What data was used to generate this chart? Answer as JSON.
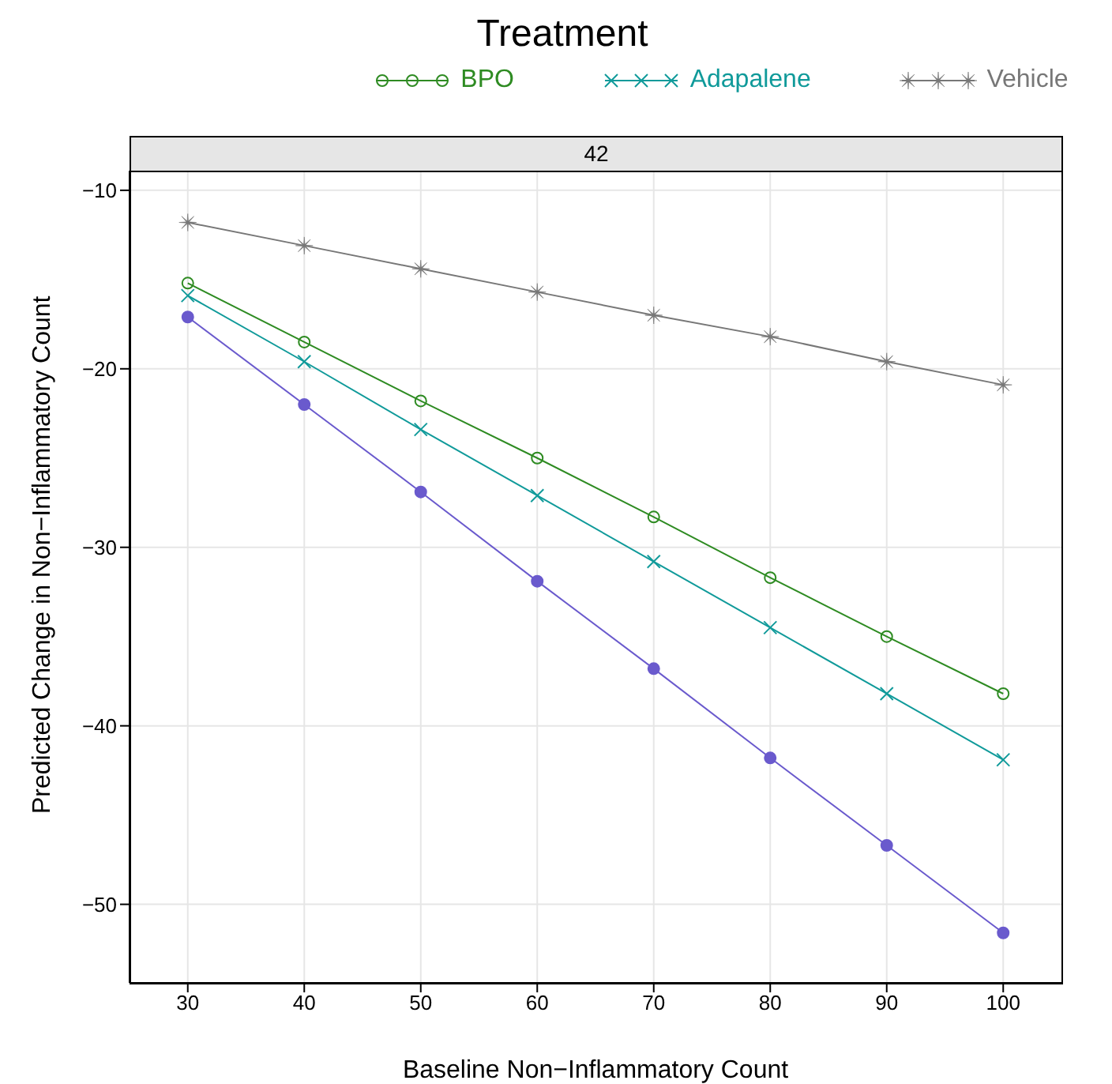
{
  "chart_data": {
    "type": "line",
    "legend_title": "Treatment",
    "subtitle": "42",
    "xlabel": "Baseline Non−Inflammatory Count",
    "ylabel": "Predicted Change in Non−Inflammatory Count",
    "x": [
      30,
      40,
      50,
      60,
      70,
      80,
      90,
      100
    ],
    "series": [
      {
        "color": "#6a5acd",
        "marker": "circle",
        "values": [
          -17.1,
          -22.0,
          -26.9,
          -31.9,
          -36.8,
          -41.8,
          -46.7,
          -51.6
        ]
      },
      {
        "name": "BPO",
        "color": "#2e8b22",
        "marker": "circle_open",
        "values": [
          -15.2,
          -18.5,
          -21.8,
          -25.0,
          -28.3,
          -31.7,
          -35.0,
          -38.2
        ]
      },
      {
        "name": "Adapalene",
        "color": "#109a9a",
        "marker": "cross",
        "values": [
          -15.9,
          -19.6,
          -23.4,
          -27.1,
          -30.8,
          -34.5,
          -38.2,
          -41.9
        ]
      },
      {
        "name": "Vehicle",
        "color": "#777777",
        "marker": "star",
        "values": [
          -11.8,
          -13.1,
          -14.4,
          -15.7,
          -17.0,
          -18.2,
          -19.6,
          -20.9
        ]
      }
    ],
    "xlim": [
      25,
      105
    ],
    "xticks": [
      30,
      40,
      50,
      60,
      70,
      80,
      90,
      100
    ],
    "ylim": [
      -54.4,
      -8.9
    ],
    "yticks": [
      -50,
      -40,
      -30,
      -20,
      -10
    ],
    "grid": true,
    "legend": "top",
    "line_style": "solid"
  }
}
